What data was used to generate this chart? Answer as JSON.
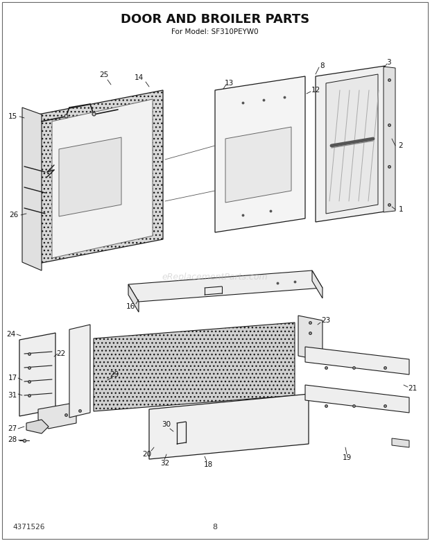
{
  "title_line1": "DOOR AND BROILER PARTS",
  "title_line2": "For Model: SF310PEYW0",
  "background_color": "#ffffff",
  "fig_width": 6.2,
  "fig_height": 7.8,
  "dpi": 100,
  "watermark": "eReplacementParts.com",
  "part_number_bottom_left": "4371526",
  "page_number_bottom_center": "8",
  "lc": "#1a1a1a",
  "lw": 0.7
}
